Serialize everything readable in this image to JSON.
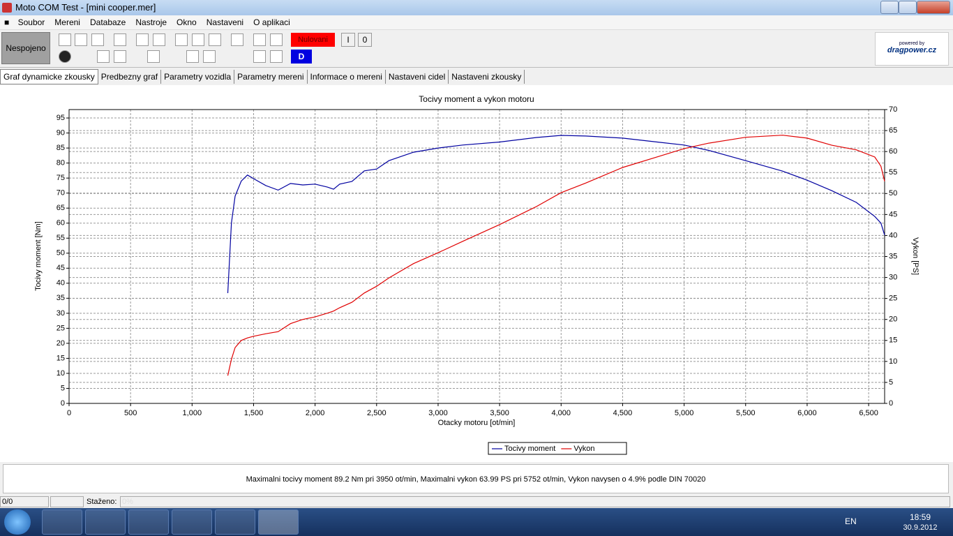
{
  "window": {
    "title": "Moto COM Test - [mini cooper.mer]"
  },
  "menu": [
    "Soubor",
    "Mereni",
    "Databaze",
    "Nastroje",
    "Okno",
    "Nastaveni",
    "O aplikaci"
  ],
  "toolbar": {
    "status": "Nespojeno",
    "reset": "Nulovani",
    "one": "I",
    "zero": "0",
    "mode": "D",
    "logo_top": "powered by",
    "logo": "dragpower.cz"
  },
  "tabs": [
    "Graf dynamicke zkousky",
    "Predbezny graf",
    "Parametry vozidla",
    "Parametry mereni",
    "Informace o mereni",
    "Nastaveni cidel",
    "Nastaveni zkousky"
  ],
  "chart_data": {
    "type": "line",
    "title": "Tocivy moment a vykon motoru",
    "x_label": "Otacky motoru [ot/min]",
    "y_label": "Tocivy moment [Nm]",
    "y2_label": "Vykon [PS]",
    "x": [
      1290,
      1320,
      1350,
      1400,
      1450,
      1500,
      1600,
      1700,
      1800,
      1900,
      2000,
      2100,
      2150,
      2200,
      2300,
      2400,
      2500,
      2600,
      2800,
      3000,
      3200,
      3500,
      3800,
      4000,
      4200,
      4500,
      4800,
      5000,
      5200,
      5500,
      5800,
      6000,
      6200,
      6400,
      6550,
      6600,
      6630
    ],
    "series": [
      {
        "name": "Tocivy moment",
        "color": "#0000a0",
        "values": [
          36.7,
          60,
          69,
          74,
          76,
          74.8,
          72.5,
          71,
          73.2,
          72.7,
          73,
          72,
          71.3,
          73,
          73.9,
          77.4,
          78,
          80.8,
          83.6,
          85,
          86,
          87,
          88.5,
          89.2,
          89,
          88.3,
          86.9,
          86,
          84.2,
          80.8,
          77.3,
          74.3,
          70.8,
          66.9,
          62.2,
          60,
          56
        ]
      },
      {
        "name": "Vykon",
        "color": "#e00000",
        "axis": "y2",
        "values": [
          6.6,
          10.5,
          13.3,
          15,
          15.6,
          16,
          16.6,
          17.1,
          19,
          20,
          20.6,
          21.5,
          22,
          22.8,
          24.1,
          26.3,
          27.9,
          29.9,
          33.3,
          35.9,
          38.6,
          42.6,
          46.9,
          50.2,
          52.5,
          56.2,
          58.9,
          60.7,
          62,
          63.4,
          63.9,
          63.2,
          61.5,
          60.4,
          58.7,
          56.5,
          52.9
        ]
      }
    ],
    "xlim": [
      0,
      6630
    ],
    "xticks": [
      0,
      500,
      {
        "value": 1000,
        "label": "1,000"
      },
      {
        "value": 1500,
        "label": "1,500"
      },
      {
        "value": 2000,
        "label": "2,000"
      },
      {
        "value": 2500,
        "label": "2,500"
      },
      {
        "value": 3000,
        "label": "3,000"
      },
      {
        "value": 3500,
        "label": "3,500"
      },
      {
        "value": 4000,
        "label": "4,000"
      },
      {
        "value": 4500,
        "label": "4,500"
      },
      {
        "value": 5000,
        "label": "5,000"
      },
      {
        "value": 5500,
        "label": "5,500"
      },
      {
        "value": 6000,
        "label": "6,000"
      },
      {
        "value": 6500,
        "label": "6,500"
      }
    ],
    "ylim": [
      0,
      97.8
    ],
    "yticks": [
      0,
      5,
      10,
      15,
      20,
      25,
      30,
      35,
      40,
      45,
      50,
      55,
      60,
      65,
      70,
      75,
      80,
      85,
      90,
      95
    ],
    "y2lim": [
      0,
      70
    ],
    "y2ticks": [
      0,
      5,
      10,
      15,
      20,
      25,
      30,
      35,
      40,
      45,
      50,
      55,
      60,
      65,
      70
    ],
    "grid": true,
    "legend": "bottom"
  },
  "summary": "Maximalni tocivy moment 89.2 Nm pri 3950 ot/min,  Maximalni vykon 63.99 PS pri 5752 ot/min,  Vykon navysen o 4.9% podle DIN 70020",
  "statusbar": {
    "counter": "0/0",
    "downloaded": "Staženo:",
    "progress": "0%"
  },
  "taskbar": {
    "language": "EN",
    "time": "18:59",
    "date": "30.9.2012"
  }
}
